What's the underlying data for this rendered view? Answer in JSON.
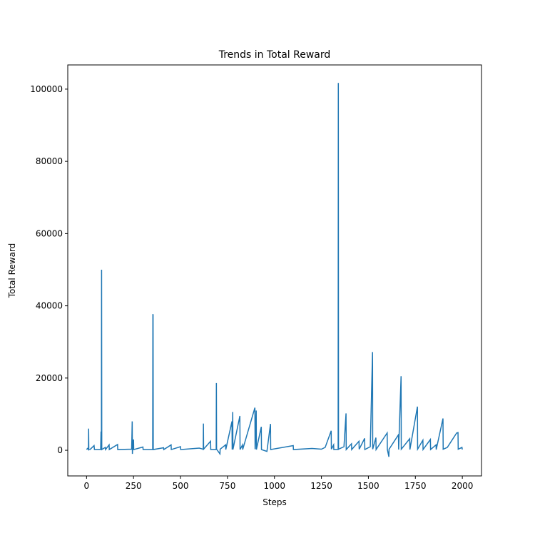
{
  "chart_data": {
    "type": "line",
    "title": "Trends in Total Reward",
    "x_label": "Steps",
    "y_label": "Total Reward",
    "x": [
      0,
      5,
      10,
      11,
      12,
      18,
      40,
      42,
      60,
      75,
      77,
      78,
      79,
      80,
      81,
      100,
      101,
      120,
      121,
      165,
      166,
      240,
      243,
      244,
      245,
      250,
      251,
      300,
      301,
      352,
      353,
      354,
      355,
      410,
      411,
      450,
      451,
      500,
      501,
      600,
      621,
      622,
      623,
      660,
      661,
      690,
      691,
      692,
      710,
      711,
      740,
      741,
      774,
      775,
      778,
      779,
      816,
      817,
      830,
      831,
      896,
      897,
      903,
      904,
      930,
      931,
      960,
      979,
      980,
      1100,
      1101,
      1200,
      1250,
      1270,
      1302,
      1303,
      1315,
      1316,
      1339,
      1340,
      1341,
      1370,
      1381,
      1382,
      1410,
      1411,
      1450,
      1451,
      1480,
      1481,
      1510,
      1522,
      1523,
      1540,
      1541,
      1600,
      1601,
      1609,
      1610,
      1660,
      1661,
      1674,
      1675,
      1720,
      1721,
      1761,
      1762,
      1790,
      1791,
      1830,
      1831,
      1860,
      1861,
      1897,
      1898,
      1920,
      1970,
      1977,
      1978,
      1998,
      2000
    ],
    "series": [
      {
        "name": "Total Reward",
        "color": "#1f77b4",
        "values": [
          200,
          500,
          200,
          6000,
          300,
          200,
          1300,
          200,
          200,
          200,
          5200,
          300,
          200,
          50000,
          200,
          800,
          200,
          1500,
          200,
          1600,
          200,
          300,
          8000,
          -1000,
          300,
          3000,
          200,
          900,
          200,
          200,
          37700,
          37500,
          200,
          700,
          200,
          1500,
          200,
          1000,
          200,
          600,
          300,
          7400,
          300,
          2500,
          200,
          200,
          18600,
          300,
          -1000,
          300,
          1500,
          200,
          8000,
          200,
          10600,
          200,
          9500,
          200,
          1500,
          200,
          11800,
          300,
          11000,
          200,
          6500,
          200,
          -300,
          7300,
          200,
          1300,
          200,
          500,
          300,
          800,
          5400,
          300,
          1500,
          200,
          200,
          101700,
          300,
          1000,
          10200,
          200,
          1800,
          200,
          2500,
          300,
          3300,
          200,
          1000,
          27200,
          300,
          3500,
          200,
          4800,
          200,
          -1800,
          300,
          4300,
          200,
          20500,
          300,
          3200,
          200,
          12100,
          300,
          2800,
          200,
          3000,
          200,
          1500,
          200,
          8800,
          300,
          800,
          4800,
          4900,
          300,
          800,
          200
        ]
      }
    ],
    "xlim": [
      -100,
      2102
    ],
    "ylim": [
      -7100,
      106700
    ],
    "xticks": [
      0,
      250,
      500,
      750,
      1000,
      1250,
      1500,
      1750,
      2000
    ],
    "yticks": [
      0,
      20000,
      40000,
      60000,
      80000,
      100000
    ]
  }
}
